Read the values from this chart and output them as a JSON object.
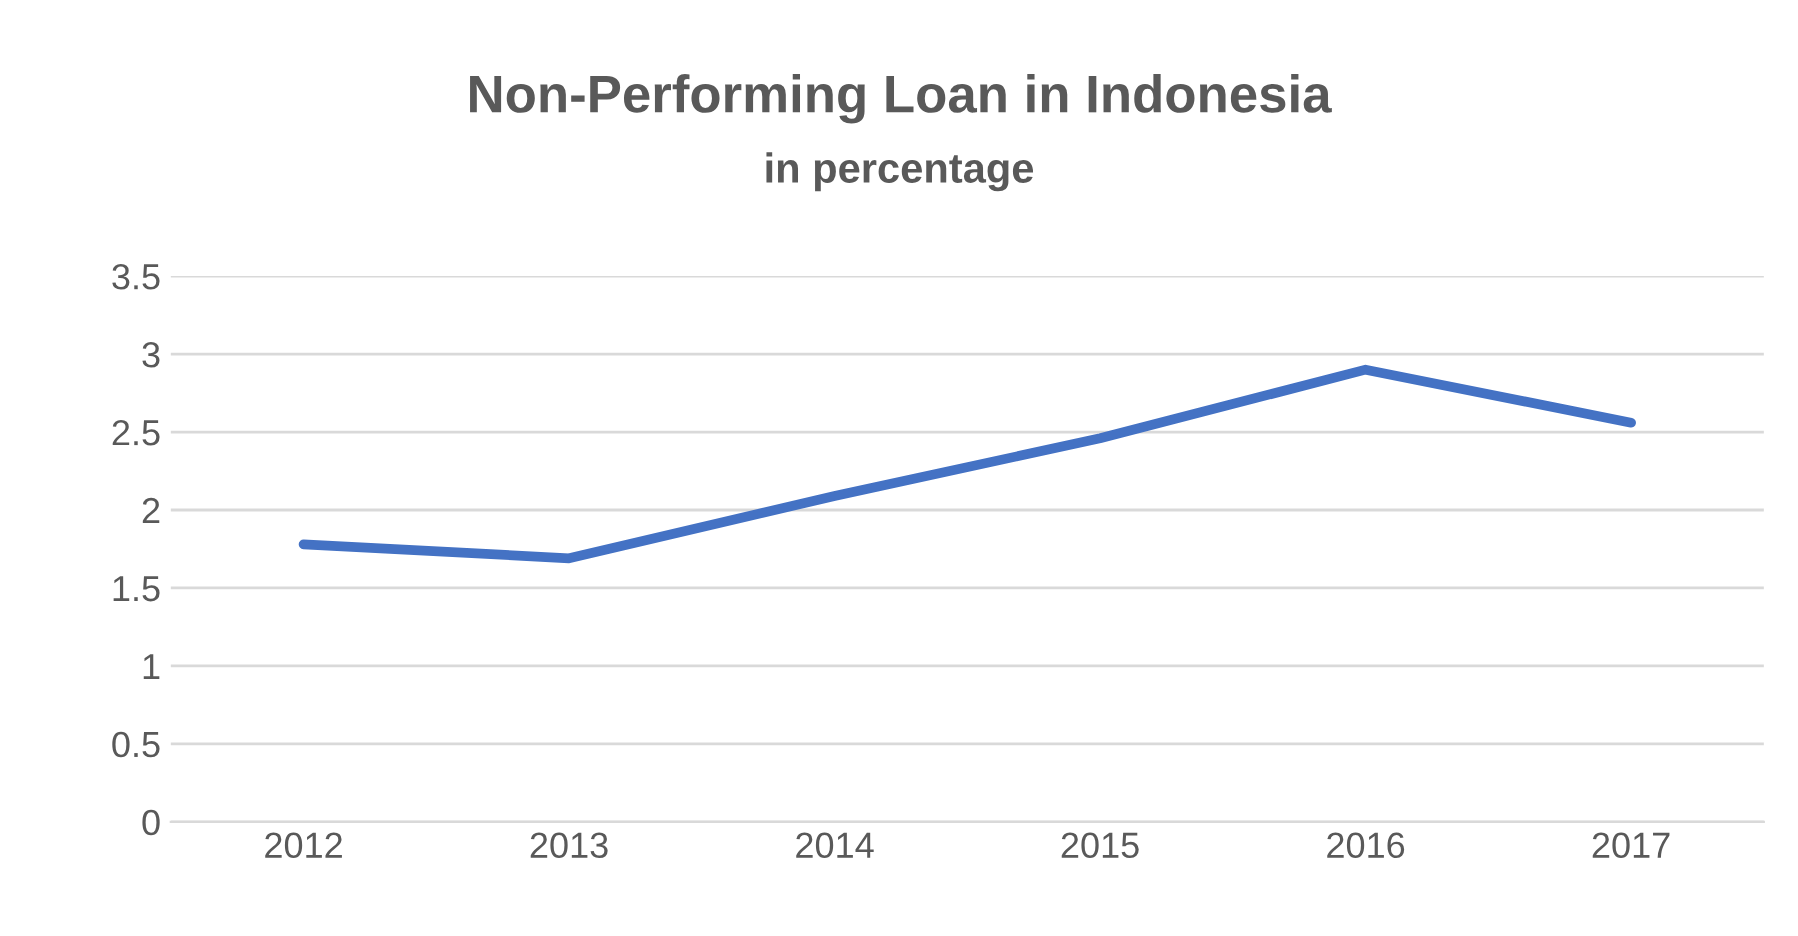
{
  "chart_data": {
    "type": "line",
    "title": "Non-Performing Loan in Indonesia",
    "subtitle": "in percentage",
    "categories": [
      "2012",
      "2013",
      "2014",
      "2015",
      "2016",
      "2017"
    ],
    "series": [
      {
        "color": "#4472c4",
        "values": [
          1.78,
          1.69,
          2.09,
          2.46,
          2.9,
          2.56
        ]
      }
    ],
    "ylim": [
      0,
      3.5
    ],
    "yticks": [
      0,
      {
        "value": 0.5,
        "label": "0.5"
      },
      1,
      {
        "value": 1.5,
        "label": "1.5"
      },
      2,
      {
        "value": 2.5,
        "label": "2.5"
      },
      3,
      {
        "value": 3.5,
        "label": "3.5"
      }
    ],
    "grid": "y",
    "legend": false,
    "marker": "none",
    "line_style": "solid"
  }
}
